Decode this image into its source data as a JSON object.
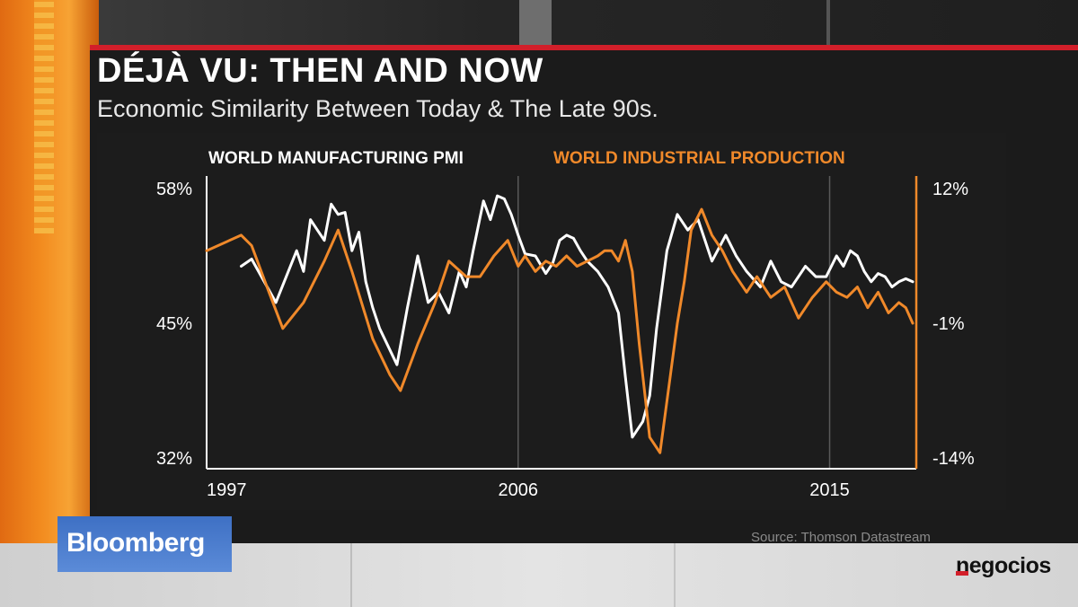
{
  "headline": "DÉJÀ VU: THEN AND NOW",
  "subheadline": "Economic Similarity Between Today & The Late 90s.",
  "source": "Source: Thomson Datastream",
  "brand": "Bloomberg",
  "watermark": "negocios",
  "colors": {
    "pmi": "#ffffff",
    "ip": "#f0892a",
    "accent": "#d21f2a"
  },
  "chart_data": {
    "type": "line",
    "series": [
      {
        "name": "WORLD MANUFACTURING PMI",
        "axis": "left",
        "x": [
          1998.0,
          1998.3,
          1999.0,
          1999.6,
          1999.8,
          2000.0,
          2000.2,
          2000.4,
          2000.6,
          2000.8,
          2001.0,
          2001.2,
          2001.4,
          2001.6,
          2001.8,
          2002.0,
          2002.5,
          2002.8,
          2003.1,
          2003.4,
          2003.7,
          2004.0,
          2004.3,
          2004.5,
          2004.7,
          2005.0,
          2005.2,
          2005.4,
          2005.6,
          2005.8,
          2006.0,
          2006.2,
          2006.5,
          2006.8,
          2007.0,
          2007.2,
          2007.4,
          2007.6,
          2007.8,
          2008.0,
          2008.3,
          2008.6,
          2008.9,
          2009.1,
          2009.3,
          2009.6,
          2009.8,
          2010.0,
          2010.3,
          2010.6,
          2010.9,
          2011.2,
          2011.6,
          2012.0,
          2012.3,
          2012.6,
          2013.0,
          2013.3,
          2013.6,
          2013.9,
          2014.3,
          2014.6,
          2014.9,
          2015.2,
          2015.4,
          2015.6,
          2015.8,
          2016.0,
          2016.2,
          2016.4,
          2016.6,
          2016.8,
          2017.0,
          2017.2,
          2017.4
        ],
        "values": [
          50.5,
          51.2,
          47.0,
          52.0,
          50.0,
          55.0,
          54.0,
          53.0,
          56.5,
          55.5,
          55.7,
          52.0,
          53.8,
          49.0,
          46.5,
          44.5,
          41.0,
          46.5,
          51.5,
          47.0,
          48.0,
          46.0,
          50.0,
          48.5,
          52.0,
          56.8,
          55.0,
          57.3,
          57.0,
          55.5,
          53.5,
          51.7,
          51.5,
          49.8,
          50.8,
          53.0,
          53.5,
          53.2,
          52.0,
          51.0,
          50.0,
          48.5,
          46.0,
          39.8,
          34.0,
          35.5,
          38.0,
          44.5,
          52.0,
          55.5,
          54.0,
          55.0,
          51.0,
          53.5,
          51.5,
          50.0,
          48.5,
          51.0,
          49.0,
          48.5,
          50.5,
          49.5,
          49.5,
          51.5,
          50.5,
          52.0,
          51.5,
          50.0,
          49.0,
          49.8,
          49.5,
          48.5,
          49.0,
          49.3,
          49.0
        ]
      },
      {
        "name": "WORLD INDUSTRIAL PRODUCTION",
        "axis": "right",
        "x": [
          1997.0,
          1998.0,
          1998.3,
          1998.8,
          1999.2,
          1999.8,
          2000.4,
          2000.8,
          2001.2,
          2001.8,
          2002.3,
          2002.6,
          2003.1,
          2003.6,
          2004.0,
          2004.5,
          2004.9,
          2005.3,
          2005.7,
          2006.0,
          2006.2,
          2006.5,
          2006.8,
          2007.1,
          2007.4,
          2007.7,
          2008.0,
          2008.3,
          2008.5,
          2008.7,
          2008.9,
          2009.1,
          2009.3,
          2009.5,
          2009.8,
          2010.1,
          2010.4,
          2010.6,
          2010.8,
          2011.0,
          2011.3,
          2011.6,
          2011.9,
          2012.2,
          2012.6,
          2012.9,
          2013.3,
          2013.7,
          2014.1,
          2014.5,
          2014.9,
          2015.2,
          2015.5,
          2015.8,
          2016.1,
          2016.4,
          2016.7,
          2017.0,
          2017.2,
          2017.4
        ],
        "values": [
          6.0,
          7.5,
          6.5,
          2.0,
          -1.5,
          1.0,
          5.0,
          8.0,
          4.0,
          -2.5,
          -6.0,
          -7.5,
          -3.0,
          1.0,
          5.0,
          3.5,
          3.5,
          5.5,
          7.0,
          4.5,
          5.5,
          4.0,
          5.0,
          4.5,
          5.5,
          4.5,
          5.0,
          5.5,
          6.0,
          6.0,
          5.0,
          7.0,
          4.0,
          -3.0,
          -12.0,
          -13.5,
          -6.0,
          -1.0,
          3.0,
          8.0,
          10.0,
          7.5,
          6.0,
          4.0,
          2.0,
          3.5,
          1.5,
          2.5,
          -0.5,
          1.5,
          3.0,
          2.0,
          1.5,
          2.5,
          0.5,
          2.0,
          0.0,
          1.0,
          0.5,
          -1.0
        ]
      }
    ],
    "x_axis": {
      "ticks": [
        "1997",
        "2006",
        "2015"
      ],
      "range": [
        1997.0,
        2017.4
      ]
    },
    "y_left": {
      "ticks": [
        "58%",
        "45%",
        "32%"
      ],
      "tick_values": [
        58,
        45,
        32
      ],
      "range": [
        32,
        58
      ]
    },
    "y_right": {
      "ticks": [
        "12%",
        "-1%",
        "-14%"
      ],
      "tick_values": [
        12,
        -1,
        -14
      ],
      "range": [
        -14,
        12
      ]
    },
    "grid": "vertical lines at 2006 and 2015"
  }
}
